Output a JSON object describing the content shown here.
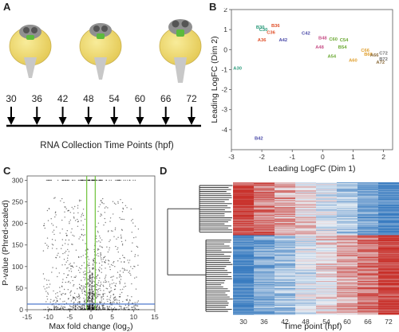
{
  "panel_letters": [
    "A",
    "B",
    "C",
    "D"
  ],
  "panel_a": {
    "timepoints": [
      "30",
      "36",
      "42",
      "48",
      "54",
      "60",
      "66",
      "72"
    ],
    "axis_label": "RNA Collection Time Points (hpf)"
  },
  "chart_data": [
    {
      "type": "scatter",
      "panel": "B",
      "xlabel": "Leading LogFC (Dim 1)",
      "ylabel": "Leading LogFC (Dim 2)",
      "xlim": [
        -3,
        2.3
      ],
      "ylim": [
        -5,
        2
      ],
      "xticks": [
        "-3",
        "-2",
        "-1",
        "0",
        "1",
        "2"
      ],
      "yticks": [
        "2",
        "1",
        "0",
        "-1",
        "-2",
        "-3",
        "-4"
      ],
      "colors": {
        "A": "#e0502a",
        "B": "#4a4aa8",
        "C": "#2a9a7a",
        "D": "#c8548a",
        "E": "#6aa832",
        "F": "#e0a030",
        "G": "#8a6a3a",
        "H": "#707070"
      },
      "points": [
        {
          "label": "B30",
          "x": -2.05,
          "y": 1.05,
          "color": "#2a9a7a"
        },
        {
          "label": "B36",
          "x": -1.55,
          "y": 1.12,
          "color": "#e0502a"
        },
        {
          "label": "C30",
          "x": -1.95,
          "y": 0.92,
          "color": "#2a9a7a"
        },
        {
          "label": "C36",
          "x": -1.7,
          "y": 0.78,
          "color": "#e0502a"
        },
        {
          "label": "A36",
          "x": -2.0,
          "y": 0.4,
          "color": "#e0502a"
        },
        {
          "label": "A42",
          "x": -1.3,
          "y": 0.4,
          "color": "#4a4aa8"
        },
        {
          "label": "C42",
          "x": -0.55,
          "y": 0.75,
          "color": "#4a4aa8"
        },
        {
          "label": "B48",
          "x": 0.0,
          "y": 0.5,
          "color": "#c8548a"
        },
        {
          "label": "C60",
          "x": 0.35,
          "y": 0.45,
          "color": "#6aa832"
        },
        {
          "label": "C54",
          "x": 0.7,
          "y": 0.4,
          "color": "#6aa832"
        },
        {
          "label": "A48",
          "x": -0.1,
          "y": 0.05,
          "color": "#c8548a"
        },
        {
          "label": "B54",
          "x": 0.65,
          "y": 0.05,
          "color": "#6aa832"
        },
        {
          "label": "A54",
          "x": 0.3,
          "y": -0.4,
          "color": "#6aa832"
        },
        {
          "label": "C66",
          "x": 1.4,
          "y": -0.1,
          "color": "#e0a030"
        },
        {
          "label": "B66",
          "x": 1.5,
          "y": -0.3,
          "color": "#e0a030"
        },
        {
          "label": "A66",
          "x": 1.7,
          "y": -0.35,
          "color": "#8a6a3a"
        },
        {
          "label": "C72",
          "x": 2.0,
          "y": -0.25,
          "color": "#707070"
        },
        {
          "label": "A60",
          "x": 1.0,
          "y": -0.6,
          "color": "#e0a030"
        },
        {
          "label": "A72",
          "x": 1.9,
          "y": -0.7,
          "color": "#8a6a3a"
        },
        {
          "label": "B72",
          "x": 2.0,
          "y": -0.55,
          "color": "#707070"
        },
        {
          "label": "A30",
          "x": -2.8,
          "y": -1.0,
          "color": "#2a9a7a"
        },
        {
          "label": "B42",
          "x": -2.1,
          "y": -4.5,
          "color": "#4a4aa8"
        }
      ]
    },
    {
      "type": "scatter",
      "panel": "C",
      "xlabel": "Max fold change (log",
      "xlabel_sub": "2",
      "xlabel_tail": ")",
      "ylabel": "P-value (Phred-scaled)",
      "xlim": [
        -15,
        15
      ],
      "ylim": [
        0,
        310
      ],
      "xticks": [
        "-15",
        "-10",
        "-5",
        "0",
        "5",
        "10",
        "15"
      ],
      "yticks": [
        "300",
        "250",
        "200",
        "150",
        "100",
        "50",
        "0"
      ],
      "threshold_x": [
        -1,
        1
      ],
      "threshold_y": 13,
      "threshold_x_color": "#6fc23a",
      "threshold_y_color": "#3a6ac8"
    },
    {
      "type": "heatmap",
      "panel": "D",
      "xlabel": "Time point (hpf)",
      "columns": [
        "30",
        "36",
        "42",
        "48",
        "54",
        "60",
        "66",
        "72"
      ],
      "colormap": {
        "low": "#3a7cc0",
        "mid": "#e8eef4",
        "high": "#c8302a"
      }
    }
  ]
}
